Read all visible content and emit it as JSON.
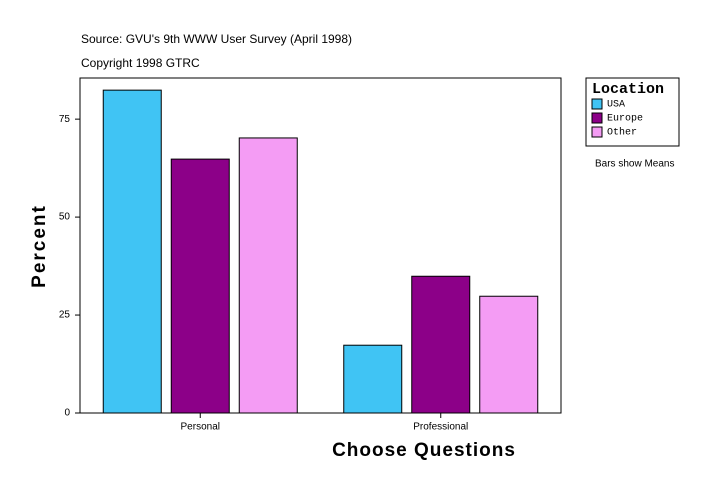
{
  "chart_data": {
    "type": "bar",
    "title": "Source: GVU's 9th WWW User Survey (April 1998)",
    "subtitle": "Copyright 1998 GTRC",
    "note": "Bars show Means",
    "x_label": "Choose Questions",
    "y_label": "Percent",
    "legend_title": "Location",
    "categories": [
      "Personal",
      "Professional"
    ],
    "series": [
      {
        "name": "USA",
        "color": "#40c4f4",
        "values": [
          82.4,
          17.3
        ]
      },
      {
        "name": "Europe",
        "color": "#8c0088",
        "values": [
          64.8,
          34.9
        ]
      },
      {
        "name": "Other",
        "color": "#f49cf4",
        "values": [
          70.2,
          29.8
        ]
      }
    ],
    "ylim": [
      0,
      85.5
    ],
    "yticks": [
      0,
      25,
      50,
      75
    ]
  }
}
